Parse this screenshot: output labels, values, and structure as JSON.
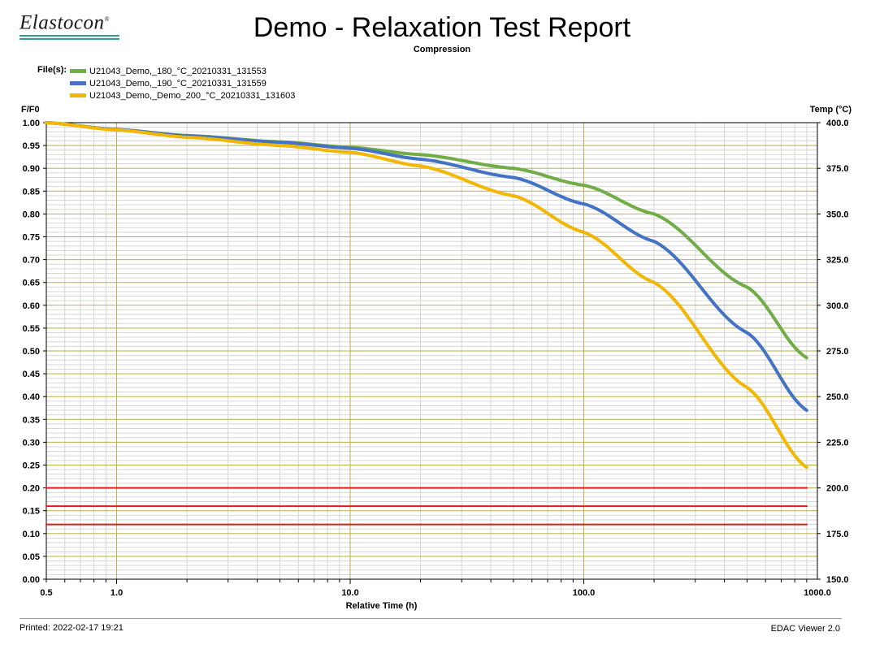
{
  "header": {
    "logo_text": "Elastocon",
    "logo_mark": "®",
    "title": "Demo - Relaxation Test Report",
    "subtitle": "Compression"
  },
  "legend": {
    "label": "File(s):",
    "items": [
      {
        "name": "U21043_Demo,_180_°C_20210331_131553",
        "color": "#70ad47"
      },
      {
        "name": "U21043_Demo,_190_°C_20210331_131559",
        "color": "#4472c4"
      },
      {
        "name": "U21043_Demo,_Demo_200_°C_20210331_131603",
        "color": "#f2b705"
      }
    ]
  },
  "footer": {
    "printed": "Printed: 2022-02-17 19:21",
    "viewer": "EDAC Viewer 2.0"
  },
  "chart_data": {
    "type": "line",
    "xlabel": "Relative Time (h)",
    "ylabel": "F/F0",
    "y2label": "Temp (°C)",
    "xscale": "log",
    "xlim": [
      0.5,
      1000
    ],
    "ylim": [
      0,
      1
    ],
    "y2lim": [
      150,
      400
    ],
    "grid": true,
    "x_ticks": [
      {
        "v": 0.5,
        "label": "0.5"
      },
      {
        "v": 1,
        "label": "1.0"
      },
      {
        "v": 10,
        "label": "10.0"
      },
      {
        "v": 100,
        "label": "100.0"
      },
      {
        "v": 1000,
        "label": "1000.0"
      }
    ],
    "y_ticks": [
      "0.00",
      "0.05",
      "0.10",
      "0.15",
      "0.20",
      "0.25",
      "0.30",
      "0.35",
      "0.40",
      "0.45",
      "0.50",
      "0.55",
      "0.60",
      "0.65",
      "0.70",
      "0.75",
      "0.80",
      "0.85",
      "0.90",
      "0.95",
      "1.00"
    ],
    "y2_ticks": [
      "150.0",
      "175.0",
      "200.0",
      "225.0",
      "250.0",
      "275.0",
      "300.0",
      "325.0",
      "350.0",
      "375.0",
      "400.0"
    ],
    "series": [
      {
        "name": "U21043_Demo,_180_°C_20210331_131553",
        "axis": "left",
        "color": "#70ad47",
        "x": [
          0.5,
          1,
          2,
          5,
          10,
          20,
          50,
          100,
          200,
          500,
          900
        ],
        "y": [
          1.0,
          0.985,
          0.972,
          0.958,
          0.946,
          0.93,
          0.9,
          0.863,
          0.8,
          0.64,
          0.485
        ]
      },
      {
        "name": "U21043_Demo,_190_°C_20210331_131559",
        "axis": "left",
        "color": "#4472c4",
        "x": [
          0.5,
          1,
          2,
          5,
          10,
          20,
          50,
          100,
          200,
          500,
          900
        ],
        "y": [
          1.0,
          0.985,
          0.971,
          0.957,
          0.944,
          0.92,
          0.88,
          0.822,
          0.74,
          0.54,
          0.37
        ]
      },
      {
        "name": "U21043_Demo,_Demo_200_°C_20210331_131603",
        "axis": "left",
        "color": "#f2b705",
        "x": [
          0.5,
          1,
          2,
          5,
          10,
          20,
          50,
          100,
          200,
          500,
          900
        ],
        "y": [
          1.0,
          0.984,
          0.968,
          0.95,
          0.935,
          0.905,
          0.84,
          0.76,
          0.65,
          0.42,
          0.245
        ]
      },
      {
        "name": "",
        "axis": "right",
        "color": "#e41a1c",
        "x": [
          0.5,
          1000
        ],
        "y": [
          200,
          200
        ]
      },
      {
        "name": "",
        "axis": "right",
        "color": "#e41a1c",
        "x": [
          0.5,
          1000
        ],
        "y": [
          190,
          190
        ]
      },
      {
        "name": "",
        "axis": "right",
        "color": "#e41a1c",
        "x": [
          0.5,
          1000
        ],
        "y": [
          180,
          180
        ]
      }
    ]
  }
}
